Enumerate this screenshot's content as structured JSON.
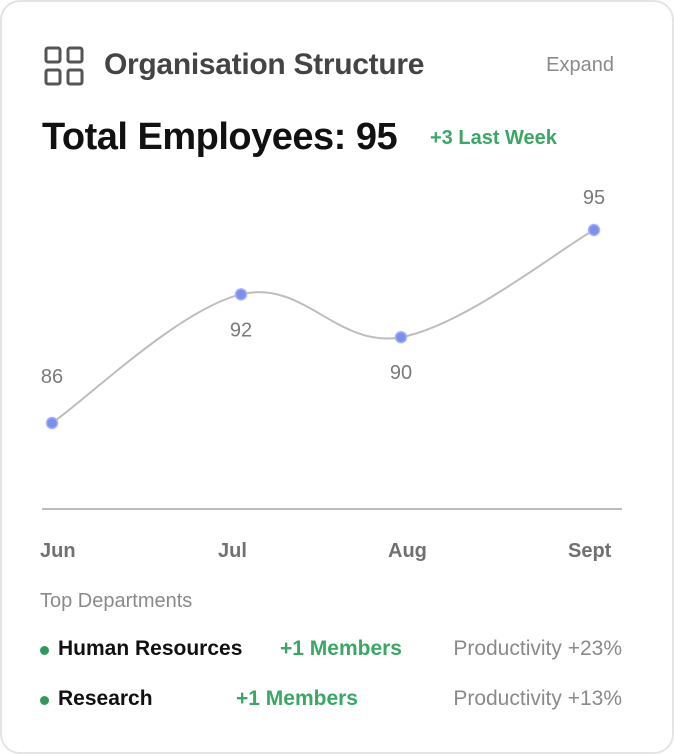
{
  "header": {
    "icon": "grid-icon",
    "title": "Organisation Structure",
    "expand_label": "Expand"
  },
  "summary": {
    "total_label": "Total Employees: 95",
    "delta_label": "+3 Last Week",
    "accent_color": "#3aa865"
  },
  "chart_data": {
    "type": "line",
    "categories": [
      "Jun",
      "Jul",
      "Aug",
      "Sept"
    ],
    "values": [
      86,
      92,
      90,
      95
    ],
    "data_labels": [
      "86",
      "92",
      "90",
      "95"
    ],
    "title": "",
    "xlabel": "",
    "ylabel": "",
    "point_color": "#7b8ff0",
    "line_color": "#bdbdbd"
  },
  "departments": {
    "heading": "Top Departments",
    "items": [
      {
        "name": "Human Resources",
        "members": "+1 Members",
        "productivity": "Productivity +23%"
      },
      {
        "name": "Research",
        "members": "+1 Members",
        "productivity": "Productivity +13%"
      }
    ]
  }
}
